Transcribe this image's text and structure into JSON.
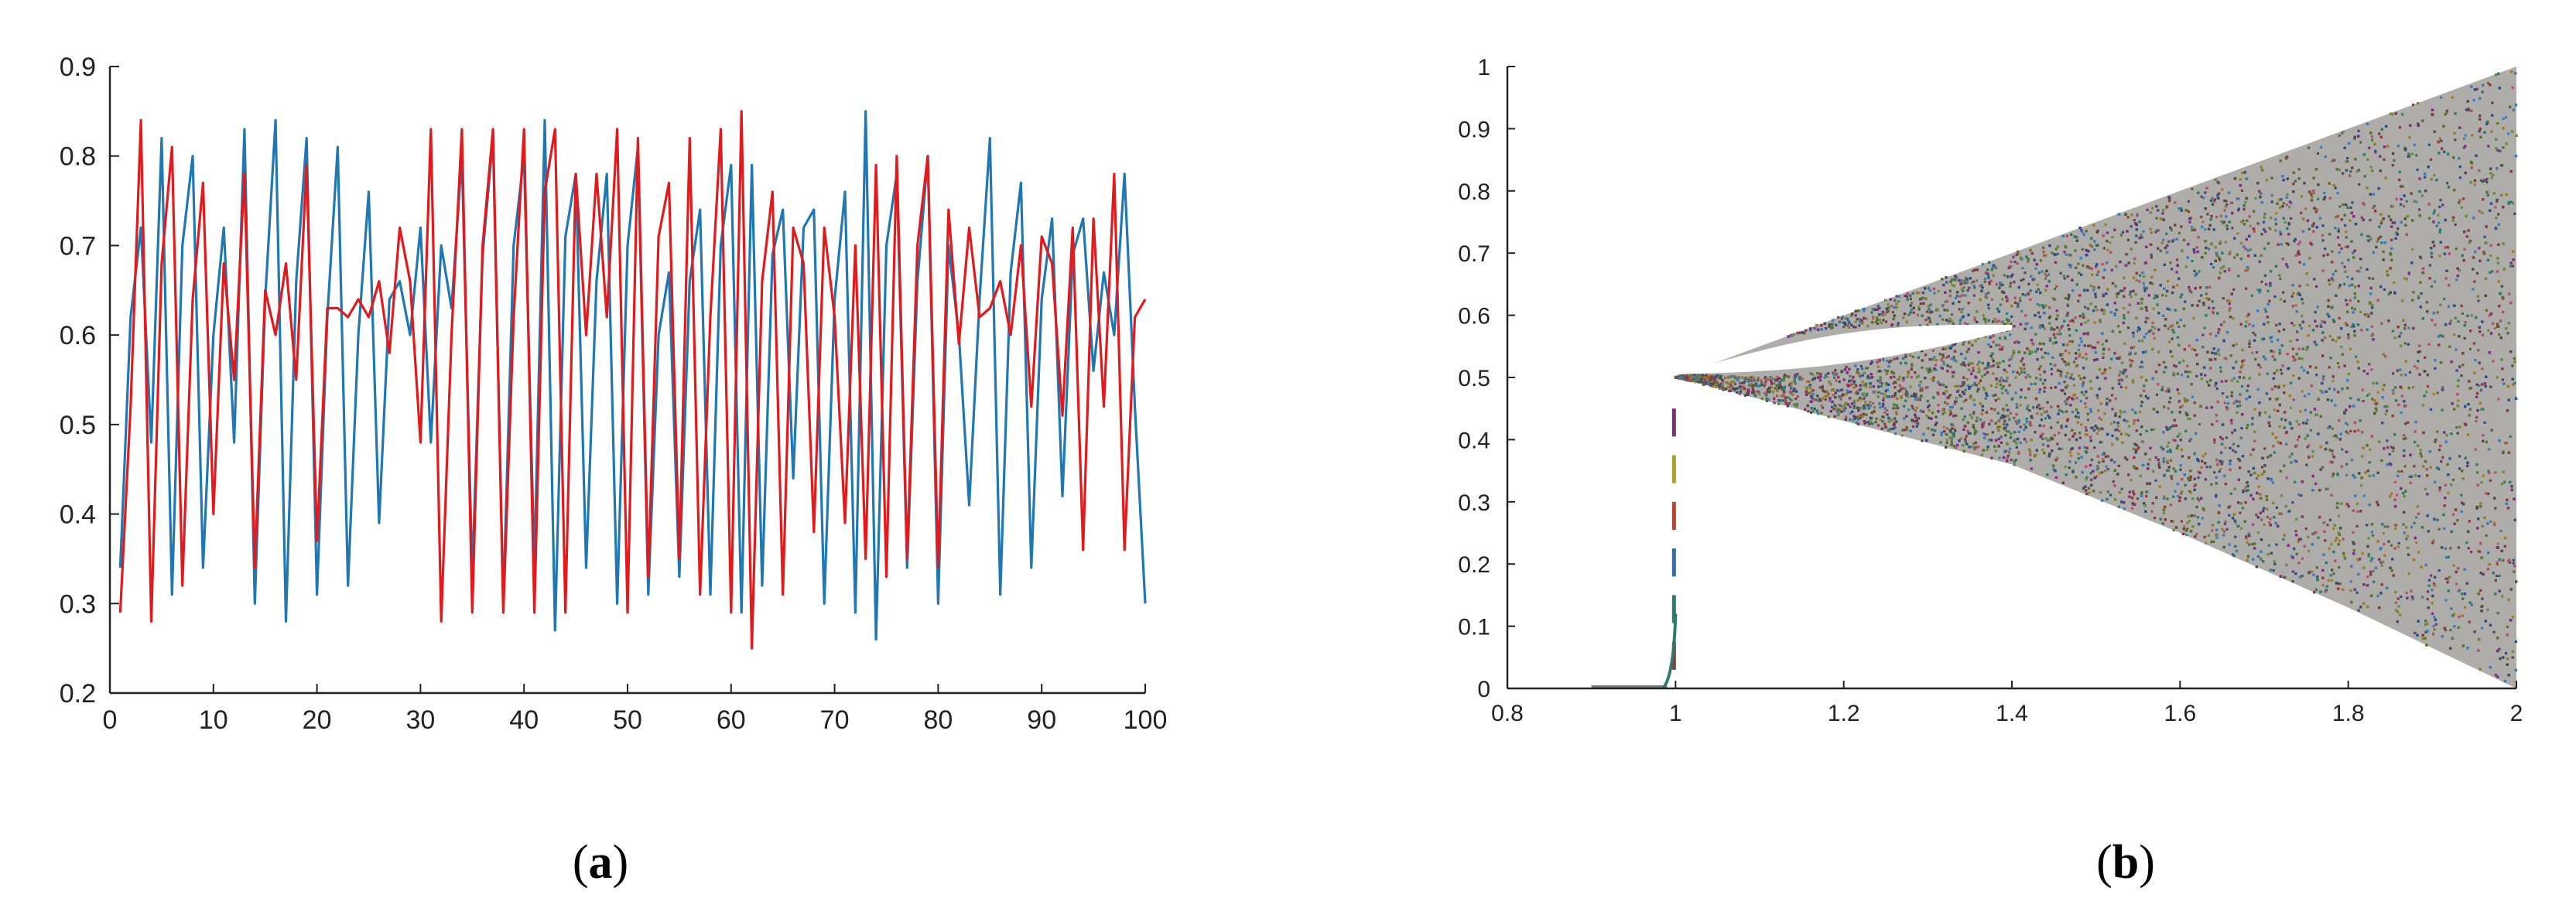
{
  "captions": {
    "a_open": "(",
    "a_letter": "a",
    "a_close": ")",
    "b_open": "(",
    "b_letter": "b",
    "b_close": ")"
  },
  "chart_data": [
    {
      "type": "line",
      "title": "",
      "xlabel": "",
      "ylabel": "",
      "xlim": [
        0,
        100
      ],
      "ylim": [
        0.2,
        0.9
      ],
      "x_ticks": [
        "0",
        "10",
        "20",
        "30",
        "40",
        "50",
        "60",
        "70",
        "80",
        "90",
        "100"
      ],
      "y_ticks": [
        "0.2",
        "0.3",
        "0.4",
        "0.5",
        "0.6",
        "0.7",
        "0.8",
        "0.9"
      ],
      "grid": false,
      "series": [
        {
          "color": "#1f77b4",
          "x": [
            1,
            2,
            3,
            4,
            5,
            6,
            7,
            8,
            9,
            10,
            11,
            12,
            13,
            14,
            15,
            16,
            17,
            18,
            19,
            20,
            21,
            22,
            23,
            24,
            25,
            26,
            27,
            28,
            29,
            30,
            31,
            32,
            33,
            34,
            35,
            36,
            37,
            38,
            39,
            40,
            41,
            42,
            43,
            44,
            45,
            46,
            47,
            48,
            49,
            50,
            51,
            52,
            53,
            54,
            55,
            56,
            57,
            58,
            59,
            60,
            61,
            62,
            63,
            64,
            65,
            66,
            67,
            68,
            69,
            70,
            71,
            72,
            73,
            74,
            75,
            76,
            77,
            78,
            79,
            80,
            81,
            82,
            83,
            84,
            85,
            86,
            87,
            88,
            89,
            90,
            91,
            92,
            93,
            94,
            95,
            96,
            97,
            98,
            99,
            100
          ],
          "y": [
            0.34,
            0.62,
            0.72,
            0.48,
            0.82,
            0.31,
            0.7,
            0.8,
            0.34,
            0.6,
            0.72,
            0.48,
            0.83,
            0.3,
            0.64,
            0.84,
            0.28,
            0.66,
            0.82,
            0.31,
            0.62,
            0.81,
            0.32,
            0.6,
            0.76,
            0.39,
            0.64,
            0.66,
            0.6,
            0.72,
            0.48,
            0.7,
            0.63,
            0.8,
            0.33,
            0.69,
            0.82,
            0.3,
            0.7,
            0.8,
            0.34,
            0.84,
            0.27,
            0.71,
            0.78,
            0.34,
            0.66,
            0.78,
            0.3,
            0.7,
            0.81,
            0.31,
            0.6,
            0.67,
            0.33,
            0.66,
            0.74,
            0.31,
            0.7,
            0.79,
            0.29,
            0.79,
            0.32,
            0.69,
            0.74,
            0.44,
            0.72,
            0.74,
            0.3,
            0.64,
            0.76,
            0.29,
            0.85,
            0.26,
            0.7,
            0.78,
            0.34,
            0.66,
            0.8,
            0.3,
            0.7,
            0.6,
            0.41,
            0.64,
            0.82,
            0.31,
            0.67,
            0.77,
            0.34,
            0.64,
            0.73,
            0.42,
            0.69,
            0.73,
            0.56,
            0.67,
            0.6,
            0.78,
            0.52,
            0.3
          ]
        },
        {
          "color": "#e31a1c",
          "x": [
            1,
            2,
            3,
            4,
            5,
            6,
            7,
            8,
            9,
            10,
            11,
            12,
            13,
            14,
            15,
            16,
            17,
            18,
            19,
            20,
            21,
            22,
            23,
            24,
            25,
            26,
            27,
            28,
            29,
            30,
            31,
            32,
            33,
            34,
            35,
            36,
            37,
            38,
            39,
            40,
            41,
            42,
            43,
            44,
            45,
            46,
            47,
            48,
            49,
            50,
            51,
            52,
            53,
            54,
            55,
            56,
            57,
            58,
            59,
            60,
            61,
            62,
            63,
            64,
            65,
            66,
            67,
            68,
            69,
            70,
            71,
            72,
            73,
            74,
            75,
            76,
            77,
            78,
            79,
            80,
            81,
            82,
            83,
            84,
            85,
            86,
            87,
            88,
            89,
            90,
            91,
            92,
            93,
            94,
            95,
            96,
            97,
            98,
            99,
            100
          ],
          "y": [
            0.29,
            0.52,
            0.84,
            0.28,
            0.68,
            0.81,
            0.32,
            0.64,
            0.77,
            0.4,
            0.68,
            0.55,
            0.78,
            0.34,
            0.65,
            0.6,
            0.68,
            0.55,
            0.79,
            0.37,
            0.63,
            0.63,
            0.62,
            0.64,
            0.62,
            0.66,
            0.58,
            0.72,
            0.66,
            0.48,
            0.83,
            0.28,
            0.6,
            0.83,
            0.29,
            0.7,
            0.83,
            0.29,
            0.62,
            0.83,
            0.29,
            0.76,
            0.83,
            0.29,
            0.78,
            0.6,
            0.78,
            0.62,
            0.83,
            0.29,
            0.82,
            0.33,
            0.71,
            0.77,
            0.35,
            0.82,
            0.31,
            0.62,
            0.83,
            0.29,
            0.85,
            0.25,
            0.66,
            0.76,
            0.31,
            0.72,
            0.68,
            0.38,
            0.72,
            0.62,
            0.39,
            0.7,
            0.35,
            0.79,
            0.33,
            0.8,
            0.35,
            0.7,
            0.8,
            0.34,
            0.74,
            0.59,
            0.72,
            0.62,
            0.63,
            0.66,
            0.6,
            0.7,
            0.52,
            0.71,
            0.68,
            0.51,
            0.72,
            0.36,
            0.73,
            0.52,
            0.78,
            0.36,
            0.62,
            0.64
          ]
        }
      ]
    },
    {
      "type": "scatter",
      "title": "",
      "xlabel": "",
      "ylabel": "",
      "xlim": [
        0.8,
        2.0
      ],
      "ylim": [
        0,
        1
      ],
      "x_ticks": [
        "0.8",
        "1",
        "1.2",
        "1.4",
        "1.6",
        "1.8",
        "2"
      ],
      "y_ticks": [
        "0",
        "0.1",
        "0.2",
        "0.3",
        "0.4",
        "0.5",
        "0.6",
        "0.7",
        "0.8",
        "0.9",
        "1"
      ],
      "grid": false,
      "description_region": {
        "bifurcation_point": [
          1.0,
          0.5
        ],
        "upper_envelope": [
          [
            1.0,
            0.5
          ],
          [
            1.2,
            0.6
          ],
          [
            1.4,
            0.7
          ],
          [
            1.6,
            0.8
          ],
          [
            1.8,
            0.9
          ],
          [
            2.0,
            1.0
          ]
        ],
        "lower_envelope": [
          [
            1.0,
            0.5
          ],
          [
            1.2,
            0.43
          ],
          [
            1.4,
            0.36
          ],
          [
            1.6,
            0.25
          ],
          [
            1.8,
            0.13
          ],
          [
            2.0,
            0.0
          ]
        ],
        "window": {
          "x_start": 1.0,
          "x_end": 1.4,
          "y_top": 0.58,
          "y_bottom": 0.52
        },
        "baseline": [
          [
            0.9,
            0.0
          ],
          [
            0.99,
            0.0
          ]
        ],
        "vertical_spike": {
          "x": 1.0,
          "y_range": [
            0.0,
            0.45
          ]
        }
      },
      "point_colors": [
        "#5b6e2a",
        "#8a3b3b",
        "#2c4f8a",
        "#7a2f7a",
        "#2f7a6f",
        "#9c7a2a",
        "#4b4b4b",
        "#b0506a",
        "#3d7ab8",
        "#6a8a3d"
      ]
    }
  ]
}
